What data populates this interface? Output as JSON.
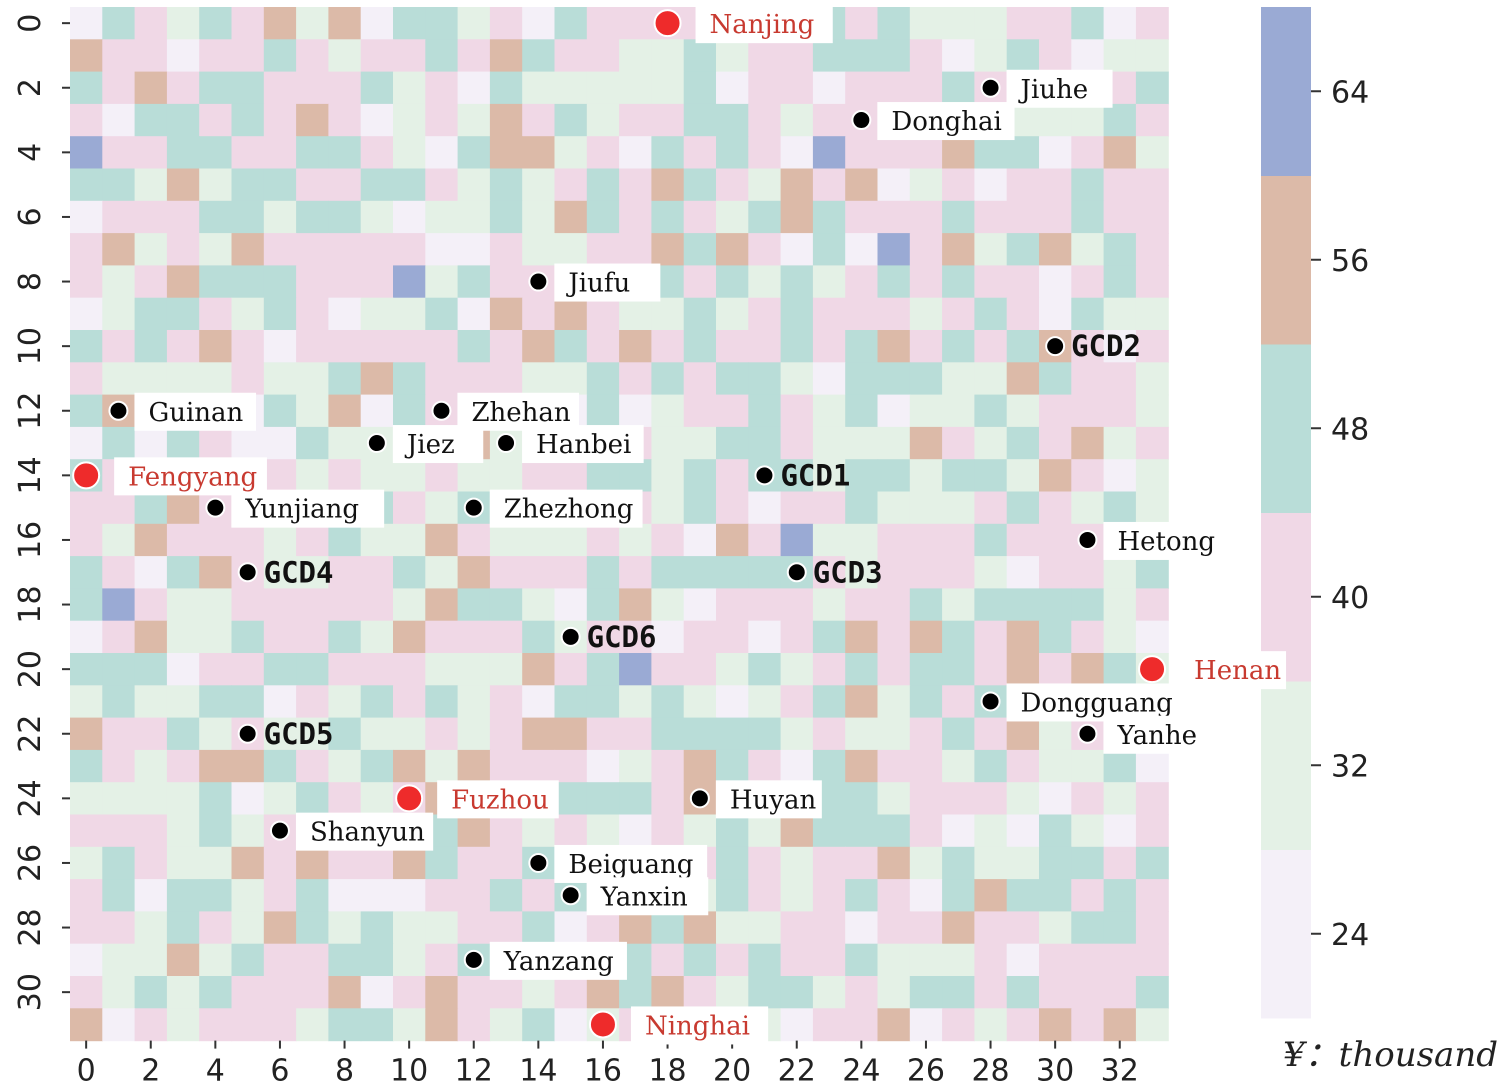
{
  "chart_data": {
    "type": "heatmap",
    "title": "",
    "xlabel": "",
    "ylabel": "",
    "x_range": [
      0,
      33
    ],
    "y_range": [
      0,
      31
    ],
    "x_ticks": [
      "0",
      "2",
      "4",
      "6",
      "8",
      "10",
      "12",
      "14",
      "16",
      "18",
      "20",
      "22",
      "24",
      "26",
      "28",
      "30",
      "32"
    ],
    "y_ticks": [
      "0",
      "2",
      "4",
      "6",
      "8",
      "10",
      "12",
      "14",
      "16",
      "18",
      "20",
      "22",
      "24",
      "26",
      "28",
      "30"
    ],
    "colorbar": {
      "range": [
        20,
        68
      ],
      "ticks": [
        "24",
        "32",
        "40",
        "48",
        "56",
        "64"
      ],
      "bands": [
        {
          "min": 20,
          "max": 28,
          "color": "#f4f0f8"
        },
        {
          "min": 28,
          "max": 36,
          "color": "#e4f1e6"
        },
        {
          "min": 36,
          "max": 44,
          "color": "#f0d8e6"
        },
        {
          "min": 44,
          "max": 52,
          "color": "#b9ddd8"
        },
        {
          "min": 52,
          "max": 60,
          "color": "#dcbaa8"
        },
        {
          "min": 60,
          "max": 68,
          "color": "#9aaad4"
        }
      ],
      "unit_label": "¥：thousand"
    },
    "high_value_cells": [
      {
        "x": 0,
        "y": 4,
        "value": 64
      },
      {
        "x": 23,
        "y": 4,
        "value": 64
      },
      {
        "x": 25,
        "y": 7,
        "value": 64
      },
      {
        "x": 10,
        "y": 8,
        "value": 64
      },
      {
        "x": 22,
        "y": 16,
        "value": 64
      },
      {
        "x": 1,
        "y": 18,
        "value": 64
      },
      {
        "x": 17,
        "y": 20,
        "value": 64
      }
    ],
    "cities": [
      {
        "name": "Nanjing",
        "x": 18,
        "y": 0
      },
      {
        "name": "Fengyang",
        "x": 0,
        "y": 14
      },
      {
        "name": "Henan",
        "x": 33,
        "y": 20
      },
      {
        "name": "Fuzhou",
        "x": 10,
        "y": 24
      },
      {
        "name": "Ninghai",
        "x": 16,
        "y": 31
      }
    ],
    "sites": [
      {
        "name": "Jiuhe",
        "x": 28,
        "y": 2
      },
      {
        "name": "Donghai",
        "x": 24,
        "y": 3
      },
      {
        "name": "Jiufu",
        "x": 14,
        "y": 8
      },
      {
        "name": "Guinan",
        "x": 1,
        "y": 12
      },
      {
        "name": "Zhehan",
        "x": 11,
        "y": 12
      },
      {
        "name": "Jiez",
        "x": 9,
        "y": 13
      },
      {
        "name": "Hanbei",
        "x": 13,
        "y": 13
      },
      {
        "name": "Yunjiang",
        "x": 4,
        "y": 15
      },
      {
        "name": "Zhezhong",
        "x": 12,
        "y": 15
      },
      {
        "name": "Hetong",
        "x": 31,
        "y": 16
      },
      {
        "name": "Dongguang",
        "x": 28,
        "y": 21
      },
      {
        "name": "Yanhe",
        "x": 31,
        "y": 22
      },
      {
        "name": "Huyan",
        "x": 19,
        "y": 24
      },
      {
        "name": "Shanyun",
        "x": 6,
        "y": 25
      },
      {
        "name": "Beiguang",
        "x": 14,
        "y": 26
      },
      {
        "name": "Yanxin",
        "x": 15,
        "y": 27
      },
      {
        "name": "Yanzang",
        "x": 12,
        "y": 29
      }
    ],
    "gcd_points": [
      {
        "name": "GCD2",
        "x": 30,
        "y": 10
      },
      {
        "name": "GCD1",
        "x": 21,
        "y": 14
      },
      {
        "name": "GCD4",
        "x": 5,
        "y": 17
      },
      {
        "name": "GCD3",
        "x": 22,
        "y": 17
      },
      {
        "name": "GCD6",
        "x": 15,
        "y": 19
      },
      {
        "name": "GCD5",
        "x": 5,
        "y": 22
      }
    ],
    "colors": {
      "city_marker": "#ee2b2b",
      "city_text": "#c83a30",
      "site_marker": "#000000",
      "site_text": "#111111",
      "label_bg": "#ffffff"
    }
  }
}
